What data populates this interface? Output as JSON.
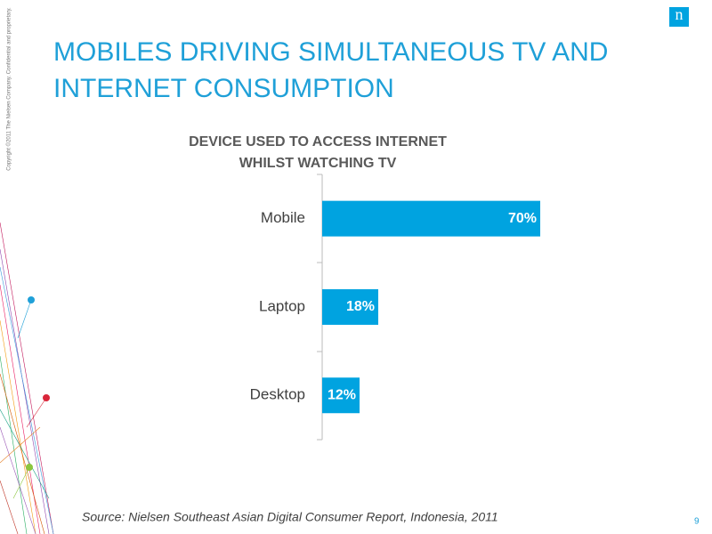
{
  "logo": "n",
  "copyright": "Copyright ©2011 The Nielsen Company. Confidential and proprietary.",
  "slide_title_lines": [
    "MOBILES DRIVING SIMULTANEOUS TV AND",
    "INTERNET CONSUMPTION"
  ],
  "source": "Source: Nielsen Southeast Asian Digital Consumer Report, Indonesia, 2011",
  "page_number": "9",
  "chart_data": {
    "type": "bar",
    "orientation": "horizontal",
    "title_lines": [
      "DEVICE USED TO ACCESS INTERNET",
      "WHILST WATCHING TV"
    ],
    "categories": [
      "Mobile",
      "Laptop",
      "Desktop"
    ],
    "values": [
      70,
      18,
      12
    ],
    "value_labels": [
      "70%",
      "18%",
      "12%"
    ],
    "color": "#00a3e0"
  }
}
